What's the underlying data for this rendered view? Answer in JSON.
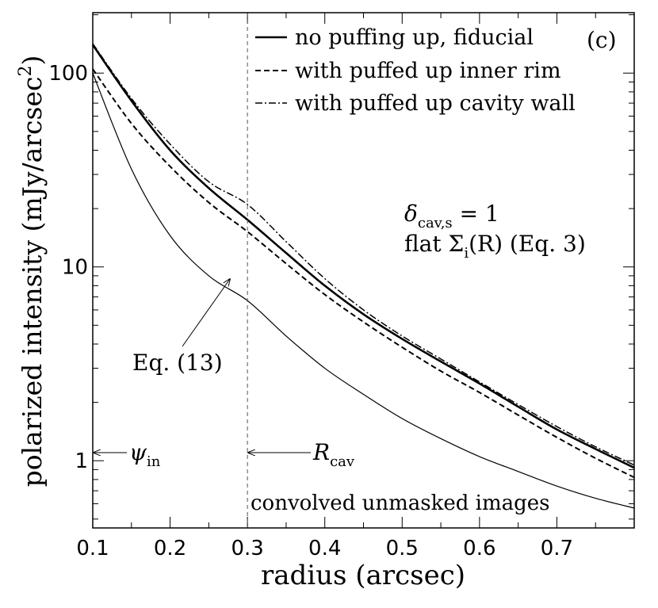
{
  "chart_data": {
    "type": "line",
    "panel_label": "(c)",
    "xlabel": "radius (arcsec)",
    "ylabel": "polarized intensity (mJy/arcsec",
    "ylabel_sup": "2",
    "ylabel_close": ")",
    "xlim": [
      0.1,
      0.8
    ],
    "ylim": [
      0.45,
      205
    ],
    "yscale": "log",
    "x_ticks": [
      0.1,
      0.2,
      0.3,
      0.4,
      0.5,
      0.6,
      0.7
    ],
    "x_tick_labels": [
      "0.1",
      "0.2",
      "0.3",
      "0.4",
      "0.5",
      "0.6",
      "0.7"
    ],
    "y_ticks": [
      1,
      10,
      100
    ],
    "y_tick_labels": [
      "1",
      "10",
      "100"
    ],
    "series": [
      {
        "name": "no puffing up, fiducial",
        "style": "solid-thick",
        "x": [
          0.1,
          0.15,
          0.2,
          0.25,
          0.3,
          0.35,
          0.4,
          0.45,
          0.5,
          0.55,
          0.6,
          0.65,
          0.7,
          0.75,
          0.8
        ],
        "y": [
          140,
          72,
          40,
          25.5,
          17.5,
          11.8,
          8.0,
          5.7,
          4.25,
          3.25,
          2.5,
          1.9,
          1.45,
          1.15,
          0.92
        ]
      },
      {
        "name": "with puffed up inner rim",
        "style": "dashed",
        "x": [
          0.1,
          0.15,
          0.2,
          0.25,
          0.3,
          0.35,
          0.4,
          0.45,
          0.5,
          0.55,
          0.6,
          0.65,
          0.7,
          0.75,
          0.8
        ],
        "y": [
          105,
          55,
          33,
          21.5,
          15.2,
          10.4,
          7.2,
          5.2,
          3.85,
          2.9,
          2.25,
          1.72,
          1.32,
          1.03,
          0.82
        ]
      },
      {
        "name": "with puffed up cavity wall",
        "style": "dashdot",
        "x": [
          0.1,
          0.15,
          0.2,
          0.25,
          0.3,
          0.35,
          0.4,
          0.45,
          0.5,
          0.55,
          0.6,
          0.65,
          0.7,
          0.75,
          0.8
        ],
        "y": [
          142,
          74,
          43,
          27.5,
          21,
          13.5,
          8.7,
          6.0,
          4.4,
          3.35,
          2.55,
          1.95,
          1.5,
          1.18,
          0.95
        ]
      },
      {
        "name": "Eq. (13)",
        "style": "thin",
        "x": [
          0.1,
          0.15,
          0.2,
          0.25,
          0.3,
          0.35,
          0.4,
          0.45,
          0.5,
          0.55,
          0.6,
          0.65,
          0.7,
          0.75,
          0.8
        ],
        "y": [
          100,
          32,
          14.5,
          9.0,
          6.7,
          4.4,
          3.0,
          2.2,
          1.65,
          1.3,
          1.05,
          0.88,
          0.74,
          0.64,
          0.57
        ]
      }
    ],
    "legend": [
      "no puffing up, fiducial",
      "with puffed up inner rim",
      "with puffed up cavity wall"
    ],
    "legend_position": "top-right",
    "vline": {
      "x": 0.3
    },
    "annotations": {
      "delta": "δ",
      "delta_sub": "cav,s",
      "delta_eq": " = 1",
      "sigma_pre": "flat Σ",
      "sigma_sub": "i",
      "sigma_post": "(R) (Eq. 3)",
      "eq13": "Eq. (13)",
      "psi": "ψ",
      "psi_sub": "in",
      "rcav": "R",
      "rcav_sub": "cav",
      "footer": "convolved unmasked images"
    }
  }
}
